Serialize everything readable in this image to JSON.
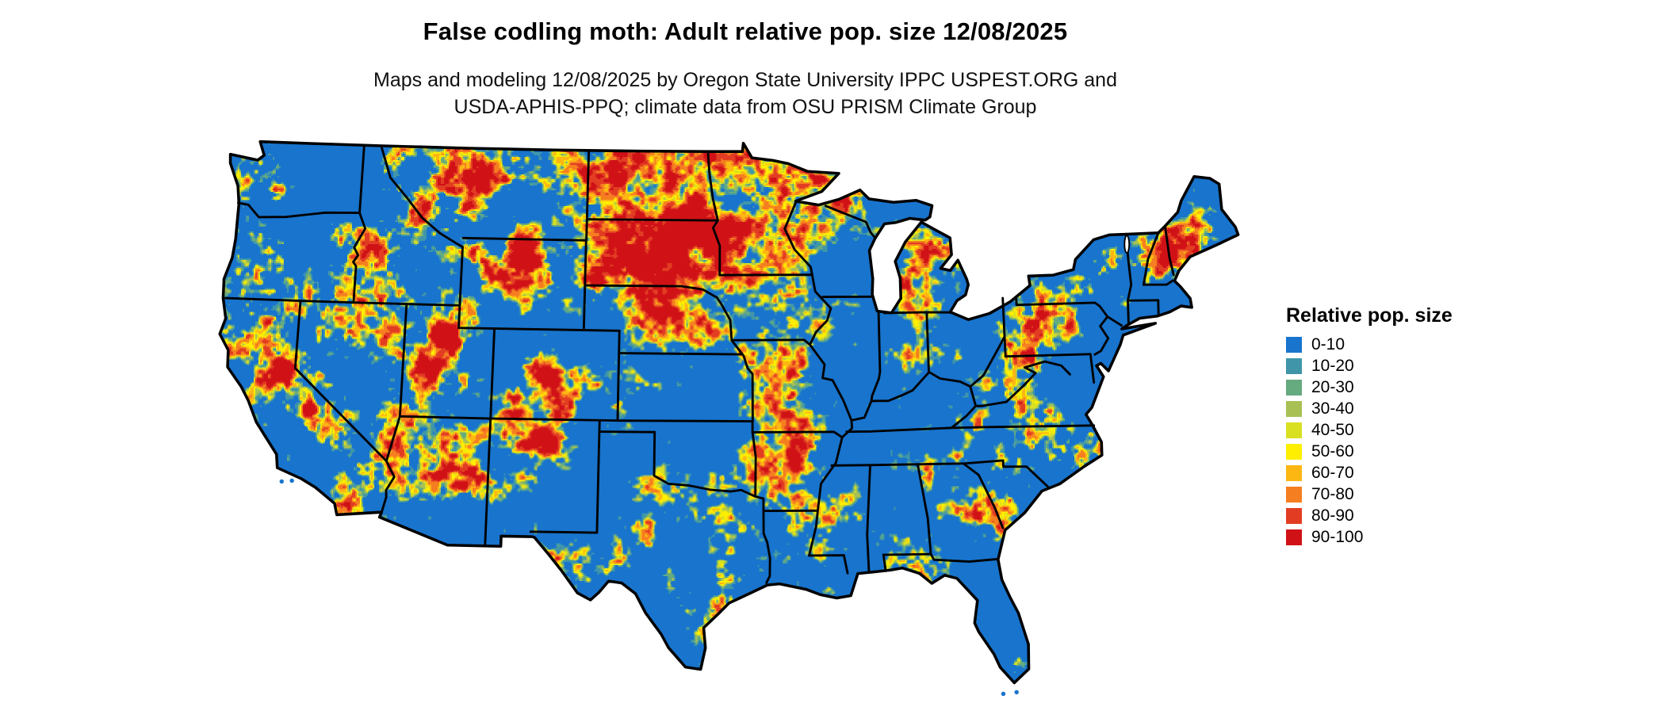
{
  "title": "False codling moth: Adult relative pop. size 12/08/2025",
  "subtitle": {
    "line1": "Maps and modeling 12/08/2025 by Oregon State University IPPC USPEST.ORG and",
    "line2": "USDA-APHIS-PPQ; climate data from OSU PRISM Climate Group"
  },
  "legend": {
    "title": "Relative pop. size",
    "items": [
      {
        "label": "0-10",
        "color": "#1874cd"
      },
      {
        "label": "10-20",
        "color": "#4096a8"
      },
      {
        "label": "20-30",
        "color": "#66ab7f"
      },
      {
        "label": "30-40",
        "color": "#a8c054"
      },
      {
        "label": "40-50",
        "color": "#d9e021"
      },
      {
        "label": "50-60",
        "color": "#feee00"
      },
      {
        "label": "60-70",
        "color": "#fdb713"
      },
      {
        "label": "70-80",
        "color": "#f57e20"
      },
      {
        "label": "80-90",
        "color": "#e23d23"
      },
      {
        "label": "90-100",
        "color": "#d01217"
      }
    ]
  },
  "map": {
    "boundary_color": "#000000",
    "water_color": "#ffffff"
  }
}
